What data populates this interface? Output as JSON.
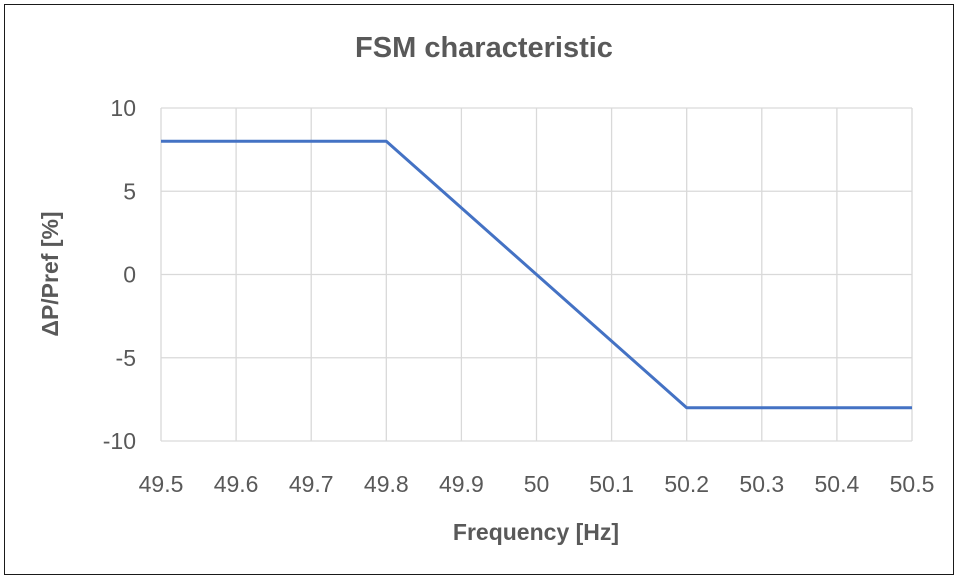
{
  "chart_data": {
    "type": "line",
    "title": "FSM characteristic",
    "xlabel": "Frequency [Hz]",
    "ylabel": "ΔP/Pref [%]",
    "xlim": [
      49.5,
      50.5
    ],
    "ylim": [
      -10,
      10
    ],
    "x_ticks": [
      49.5,
      49.6,
      49.7,
      49.8,
      49.9,
      50,
      50.1,
      50.2,
      50.3,
      50.4,
      50.5
    ],
    "x_tick_labels": [
      "49.5",
      "49.6",
      "49.7",
      "49.8",
      "49.9",
      "50",
      "50.1",
      "50.2",
      "50.3",
      "50.4",
      "50.5"
    ],
    "y_ticks": [
      10,
      5,
      0,
      -5,
      -10
    ],
    "y_tick_labels": [
      "10",
      "5",
      "0",
      "-5",
      "-10"
    ],
    "grid": true,
    "legend": "none",
    "series": [
      {
        "color": "#4472c4",
        "x": [
          49.5,
          49.8,
          50.2,
          50.5
        ],
        "y": [
          8,
          8,
          -8,
          -8
        ]
      }
    ]
  }
}
